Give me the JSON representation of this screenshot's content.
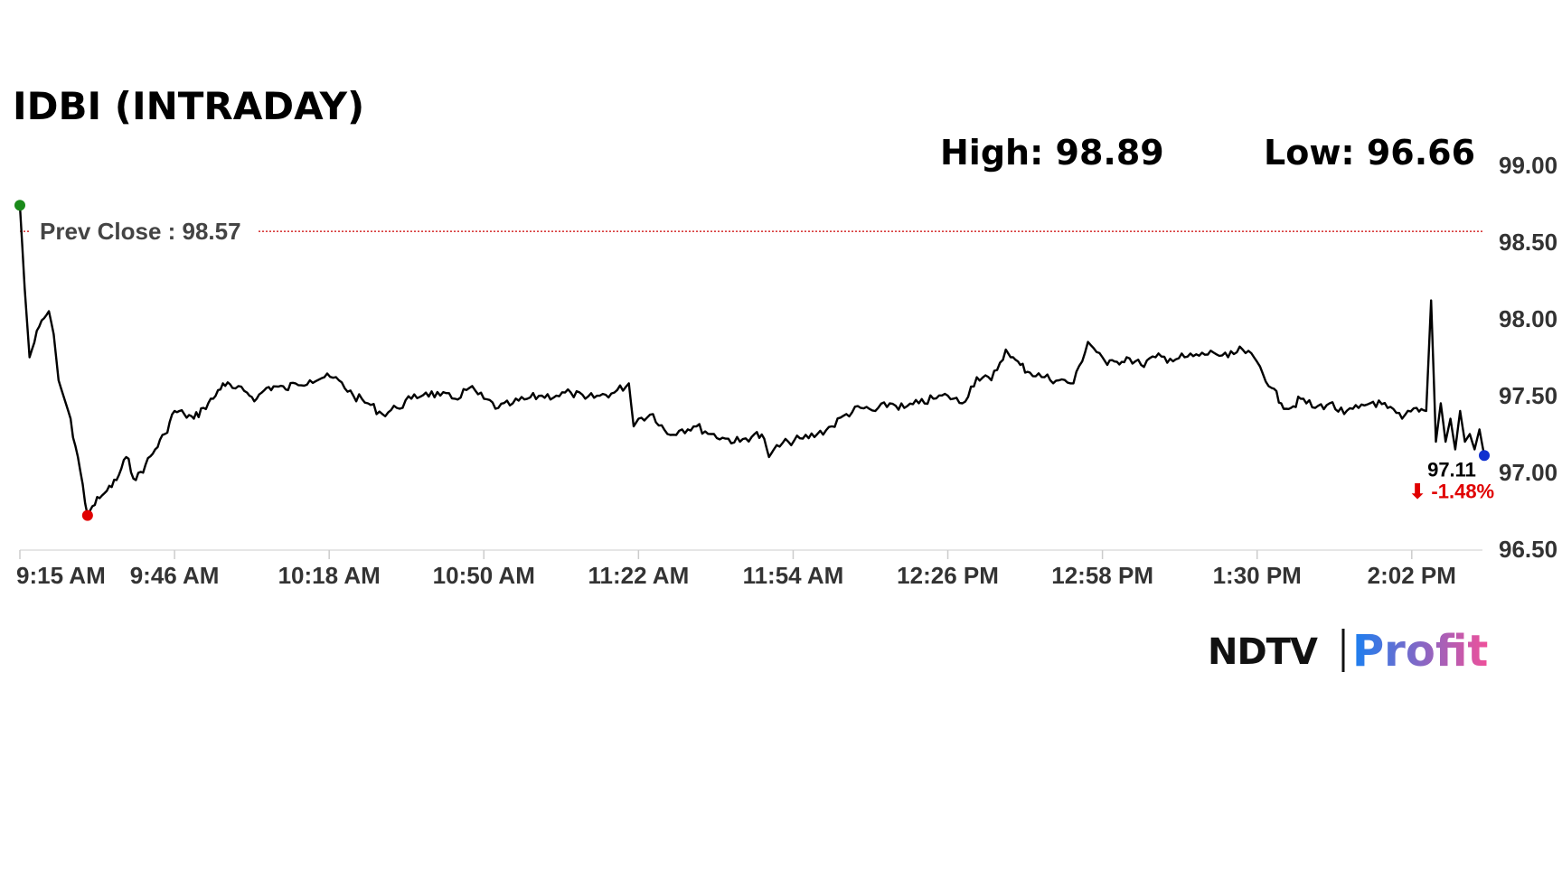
{
  "colors": {
    "line": "#000000",
    "prev_close_line": "#cc0000",
    "open_marker": "#1a8a1a",
    "low_marker": "#e00000",
    "last_marker": "#1030d0",
    "change_down": "#e00000",
    "brand_profit_start": "#1a7ff0",
    "brand_profit_end": "#f0509a"
  },
  "logo": {
    "left": "NDTV",
    "right": "Profit"
  },
  "chart_data": {
    "type": "line",
    "title": "IDBI (INTRADAY)",
    "high_label": "High: 98.89",
    "low_label": "Low: 96.66",
    "prev_close": 98.57,
    "prev_close_label": "Prev Close : 98.57",
    "last_value_label": "97.11",
    "change_label": "⬇ -1.48%",
    "ylim": [
      96.5,
      99.0
    ],
    "y_ticks": [
      "96.50",
      "97.00",
      "97.50",
      "98.00",
      "98.50",
      "99.00"
    ],
    "x_range": [
      "09:15",
      "14:18"
    ],
    "x_ticks": [
      "9:15 AM",
      "9:46 AM",
      "10:18 AM",
      "10:50 AM",
      "11:22 AM",
      "11:54 AM",
      "12:26 PM",
      "12:58 PM",
      "1:30 PM",
      "2:02 PM"
    ],
    "series": [
      {
        "x": [
          "09:15",
          "09:16",
          "09:17",
          "09:19",
          "09:21",
          "09:22",
          "09:23",
          "09:24",
          "09:25",
          "09:27",
          "09:29",
          "09:30",
          "09:32",
          "09:33",
          "09:35",
          "09:37",
          "09:39",
          "09:41",
          "09:43",
          "09:45",
          "09:47",
          "09:49",
          "09:51",
          "09:53",
          "09:55",
          "09:57",
          "09:59",
          "10:02",
          "10:04",
          "10:06",
          "10:08",
          "10:10",
          "10:12",
          "10:15",
          "10:18",
          "10:21",
          "10:24",
          "10:27",
          "10:30",
          "10:33",
          "10:36",
          "10:39",
          "10:42",
          "10:45",
          "10:48",
          "10:51",
          "10:54",
          "10:57",
          "11:00",
          "11:03",
          "11:06",
          "11:09",
          "11:12",
          "11:15",
          "11:18",
          "11:21",
          "11:22",
          "11:23",
          "11:26",
          "11:29",
          "11:32",
          "11:35",
          "11:38",
          "11:41",
          "11:44",
          "11:47",
          "11:49",
          "11:50",
          "11:51",
          "11:54",
          "11:57",
          "12:00",
          "12:03",
          "12:06",
          "12:09",
          "12:12",
          "12:15",
          "12:18",
          "12:21",
          "12:24",
          "12:27",
          "12:30",
          "12:33",
          "12:36",
          "12:39",
          "12:40",
          "12:42",
          "12:44",
          "12:47",
          "12:50",
          "12:53",
          "12:56",
          "12:59",
          "13:00",
          "13:02",
          "13:04",
          "13:07",
          "13:10",
          "13:13",
          "13:16",
          "13:19",
          "13:22",
          "13:25",
          "13:28",
          "13:31",
          "13:34",
          "13:36",
          "13:38",
          "13:40",
          "13:43",
          "13:46",
          "13:49",
          "13:52",
          "13:55",
          "13:58",
          "14:01",
          "14:04",
          "14:06",
          "14:07",
          "14:08",
          "14:09",
          "14:10",
          "14:11",
          "14:12",
          "14:13",
          "14:14",
          "14:15",
          "14:16",
          "14:17",
          "14:18"
        ],
        "values": [
          98.74,
          98.2,
          97.75,
          97.95,
          98.05,
          97.9,
          97.6,
          97.5,
          97.4,
          97.1,
          96.72,
          96.78,
          96.85,
          96.88,
          96.95,
          97.1,
          96.95,
          97.05,
          97.15,
          97.25,
          97.4,
          97.38,
          97.35,
          97.42,
          97.48,
          97.58,
          97.55,
          97.52,
          97.48,
          97.55,
          97.56,
          97.54,
          97.58,
          97.6,
          97.62,
          97.6,
          97.5,
          97.45,
          97.38,
          97.42,
          97.48,
          97.52,
          97.5,
          97.48,
          97.55,
          97.48,
          97.42,
          97.45,
          97.48,
          97.5,
          97.5,
          97.52,
          97.48,
          97.5,
          97.52,
          97.58,
          97.3,
          97.35,
          97.38,
          97.25,
          97.28,
          97.3,
          97.25,
          97.22,
          97.2,
          97.25,
          97.22,
          97.1,
          97.15,
          97.2,
          97.22,
          97.25,
          97.3,
          97.38,
          97.42,
          97.4,
          97.45,
          97.42,
          97.45,
          97.48,
          97.5,
          97.45,
          97.62,
          97.6,
          97.8,
          97.75,
          97.7,
          97.65,
          97.62,
          97.6,
          97.58,
          97.85,
          97.75,
          97.7,
          97.72,
          97.75,
          97.7,
          97.75,
          97.74,
          97.75,
          97.76,
          97.78,
          97.75,
          97.8,
          97.72,
          97.55,
          97.45,
          97.42,
          97.48,
          97.42,
          97.45,
          97.38,
          97.42,
          97.46,
          97.42,
          97.35,
          97.42,
          97.4,
          98.12,
          97.2,
          97.45,
          97.2,
          97.35,
          97.15,
          97.4,
          97.2,
          97.25,
          97.15,
          97.28,
          97.11
        ]
      }
    ]
  }
}
